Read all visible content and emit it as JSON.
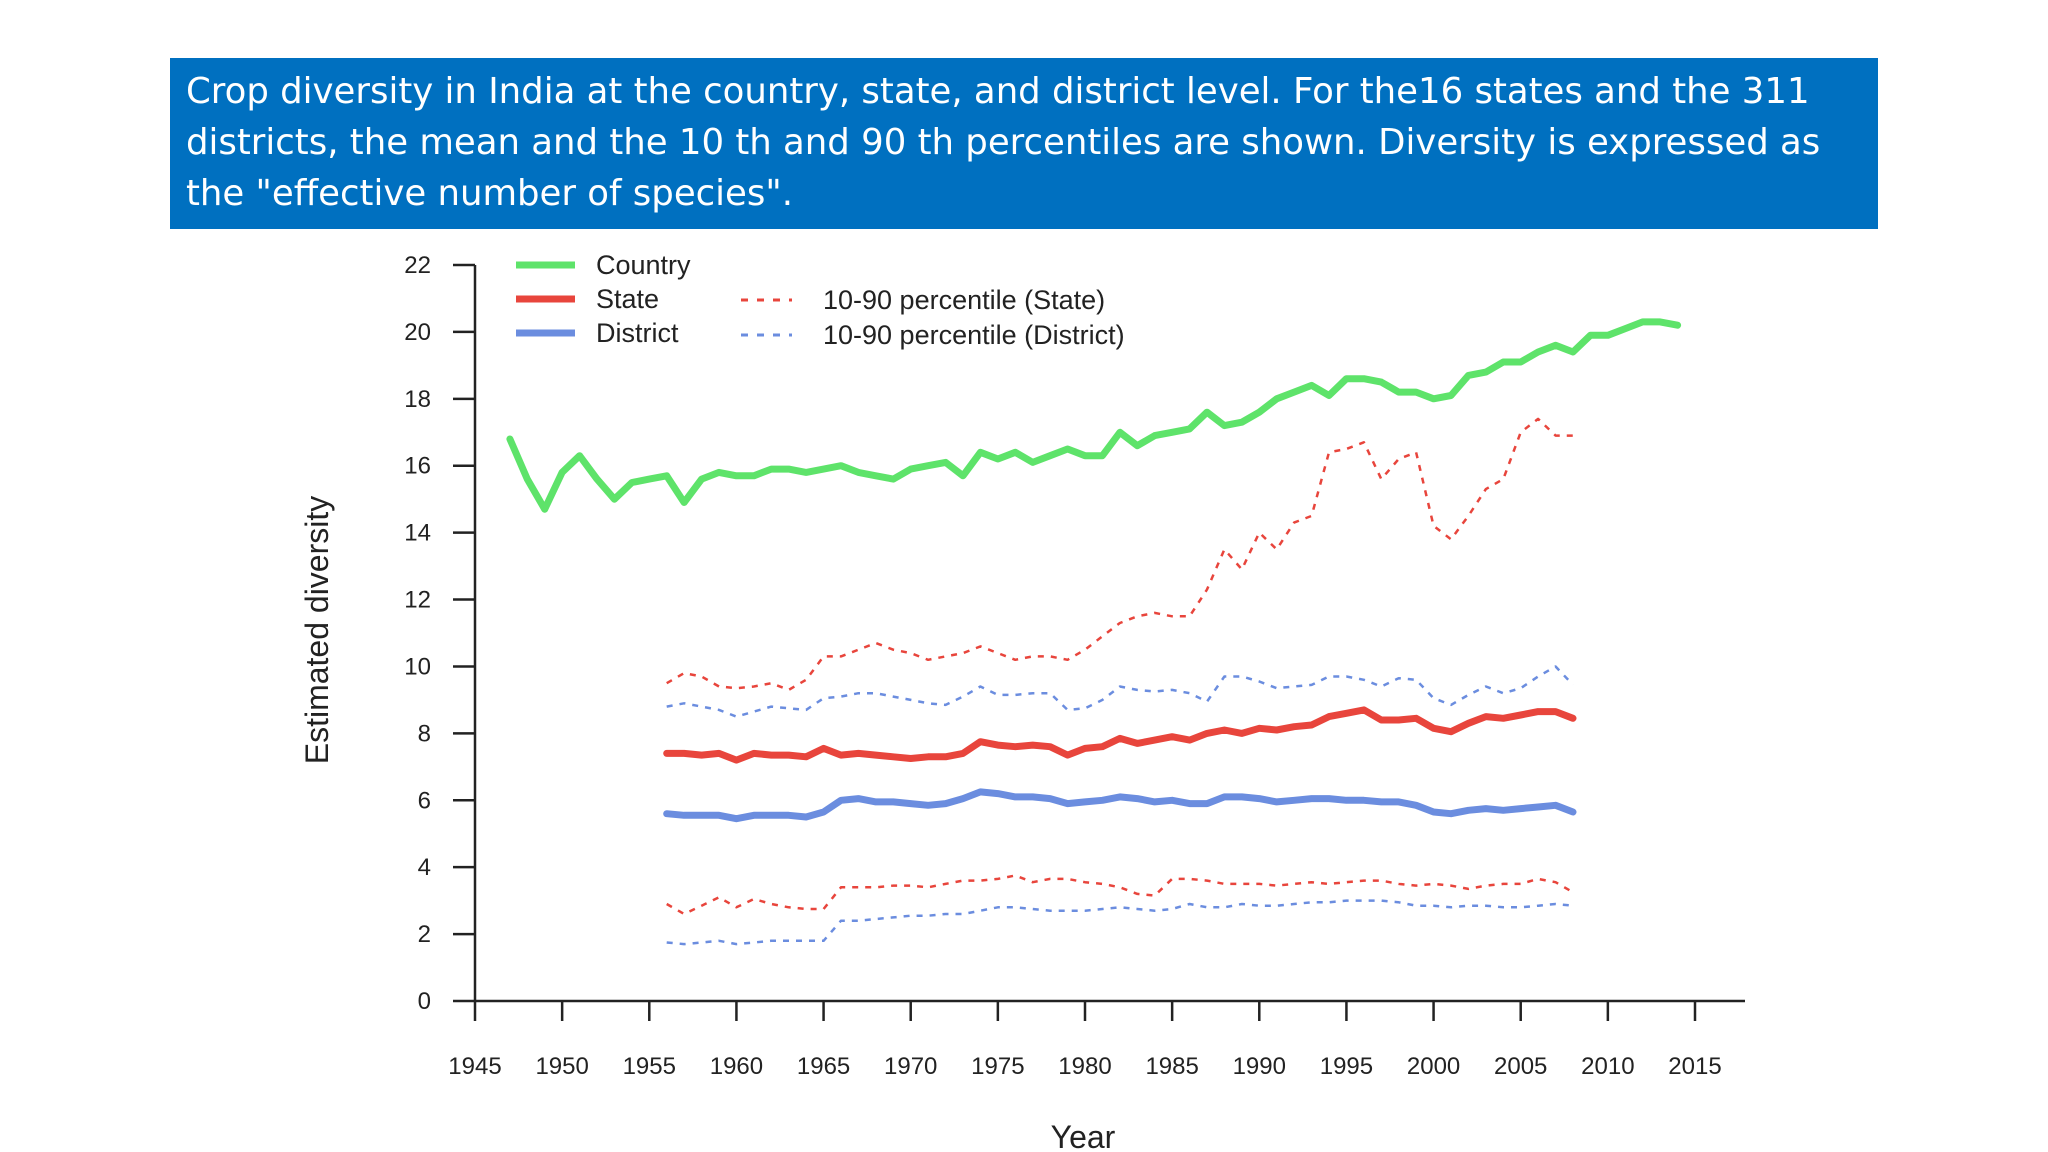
{
  "caption": {
    "text": "Crop diversity in India at the country, state, and district level. For the16 states and the 311 districts, the mean and the 10 th and 90 th percentiles are shown. Diversity is expressed as the \"effective number of species\"."
  },
  "chart_data": {
    "type": "line",
    "title": "",
    "xlabel": "Year",
    "ylabel": "Estimated diversity",
    "xlim": [
      1945,
      2015
    ],
    "ylim": [
      0,
      22
    ],
    "x_ticks": [
      1945,
      1950,
      1955,
      1960,
      1965,
      1970,
      1975,
      1980,
      1985,
      1990,
      1995,
      2000,
      2005,
      2010,
      2015
    ],
    "y_ticks": [
      0,
      2,
      4,
      6,
      8,
      10,
      12,
      14,
      16,
      18,
      20,
      22
    ],
    "grid": false,
    "legend": {
      "placement": "top-left",
      "entries": [
        {
          "label": "Country",
          "series": "country"
        },
        {
          "label": "State",
          "series": "state"
        },
        {
          "label": "District",
          "series": "district"
        },
        {
          "label": "10-90 percentile (State)",
          "series": "state_p"
        },
        {
          "label": "10-90 percentile (District)",
          "series": "district_p"
        }
      ]
    },
    "series": [
      {
        "id": "country",
        "name": "Country",
        "color": "#5ee36a",
        "style": "solid",
        "x": [
          1947,
          1948,
          1949,
          1950,
          1951,
          1952,
          1953,
          1954,
          1955,
          1956,
          1957,
          1958,
          1959,
          1960,
          1961,
          1962,
          1963,
          1964,
          1965,
          1966,
          1967,
          1968,
          1969,
          1970,
          1971,
          1972,
          1973,
          1974,
          1975,
          1976,
          1977,
          1978,
          1979,
          1980,
          1981,
          1982,
          1983,
          1984,
          1985,
          1986,
          1987,
          1988,
          1989,
          1990,
          1991,
          1992,
          1993,
          1994,
          1995,
          1996,
          1997,
          1998,
          1999,
          2000,
          2001,
          2002,
          2003,
          2004,
          2005,
          2006,
          2007,
          2008,
          2009,
          2010,
          2011,
          2012,
          2013,
          2014
        ],
        "y": [
          16.8,
          15.6,
          14.7,
          15.8,
          16.3,
          15.6,
          15.0,
          15.5,
          15.6,
          15.7,
          14.9,
          15.6,
          15.8,
          15.7,
          15.7,
          15.9,
          15.9,
          15.8,
          15.9,
          16.0,
          15.8,
          15.7,
          15.6,
          15.9,
          16.0,
          16.1,
          15.7,
          16.4,
          16.2,
          16.4,
          16.1,
          16.3,
          16.5,
          16.3,
          16.3,
          17.0,
          16.6,
          16.9,
          17.0,
          17.1,
          17.6,
          17.2,
          17.3,
          17.6,
          18.0,
          18.2,
          18.4,
          18.1,
          18.6,
          18.6,
          18.5,
          18.2,
          18.2,
          18.0,
          18.1,
          18.7,
          18.8,
          19.1,
          19.1,
          19.4,
          19.6,
          19.4,
          19.9,
          19.9,
          20.1,
          20.3,
          20.3,
          20.2
        ]
      },
      {
        "id": "state",
        "name": "State",
        "color": "#e8453c",
        "style": "solid",
        "x": [
          1956,
          1957,
          1958,
          1959,
          1960,
          1961,
          1962,
          1963,
          1964,
          1965,
          1966,
          1967,
          1968,
          1969,
          1970,
          1971,
          1972,
          1973,
          1974,
          1975,
          1976,
          1977,
          1978,
          1979,
          1980,
          1981,
          1982,
          1983,
          1984,
          1985,
          1986,
          1987,
          1988,
          1989,
          1990,
          1991,
          1992,
          1993,
          1994,
          1995,
          1996,
          1997,
          1998,
          1999,
          2000,
          2001,
          2002,
          2003,
          2004,
          2005,
          2006,
          2007,
          2008
        ],
        "y": [
          7.4,
          7.4,
          7.35,
          7.4,
          7.2,
          7.4,
          7.35,
          7.35,
          7.3,
          7.55,
          7.35,
          7.4,
          7.35,
          7.3,
          7.25,
          7.3,
          7.3,
          7.4,
          7.75,
          7.65,
          7.6,
          7.65,
          7.6,
          7.35,
          7.55,
          7.6,
          7.85,
          7.7,
          7.8,
          7.9,
          7.8,
          8.0,
          8.1,
          8.0,
          8.15,
          8.1,
          8.2,
          8.25,
          8.5,
          8.6,
          8.7,
          8.4,
          8.4,
          8.45,
          8.15,
          8.05,
          8.3,
          8.5,
          8.45,
          8.55,
          8.65,
          8.65,
          8.45
        ]
      },
      {
        "id": "district",
        "name": "District",
        "color": "#6b8ddf",
        "style": "solid",
        "x": [
          1956,
          1957,
          1958,
          1959,
          1960,
          1961,
          1962,
          1963,
          1964,
          1965,
          1966,
          1967,
          1968,
          1969,
          1970,
          1971,
          1972,
          1973,
          1974,
          1975,
          1976,
          1977,
          1978,
          1979,
          1980,
          1981,
          1982,
          1983,
          1984,
          1985,
          1986,
          1987,
          1988,
          1989,
          1990,
          1991,
          1992,
          1993,
          1994,
          1995,
          1996,
          1997,
          1998,
          1999,
          2000,
          2001,
          2002,
          2003,
          2004,
          2005,
          2006,
          2007,
          2008
        ],
        "y": [
          5.6,
          5.55,
          5.55,
          5.55,
          5.45,
          5.55,
          5.55,
          5.55,
          5.5,
          5.65,
          6.0,
          6.05,
          5.95,
          5.95,
          5.9,
          5.85,
          5.9,
          6.05,
          6.25,
          6.2,
          6.1,
          6.1,
          6.05,
          5.9,
          5.95,
          6.0,
          6.1,
          6.05,
          5.95,
          6.0,
          5.9,
          5.9,
          6.1,
          6.1,
          6.05,
          5.95,
          6.0,
          6.05,
          6.05,
          6.0,
          6.0,
          5.95,
          5.95,
          5.85,
          5.65,
          5.6,
          5.7,
          5.75,
          5.7,
          5.75,
          5.8,
          5.85,
          5.65
        ]
      },
      {
        "id": "state_p90",
        "name": "10-90 percentile (State)",
        "color": "#e8453c",
        "style": "dashed",
        "x": [
          1956,
          1957,
          1958,
          1959,
          1960,
          1961,
          1962,
          1963,
          1964,
          1965,
          1966,
          1967,
          1968,
          1969,
          1970,
          1971,
          1972,
          1973,
          1974,
          1975,
          1976,
          1977,
          1978,
          1979,
          1980,
          1981,
          1982,
          1983,
          1984,
          1985,
          1986,
          1987,
          1988,
          1989,
          1990,
          1991,
          1992,
          1993,
          1994,
          1995,
          1996,
          1997,
          1998,
          1999,
          2000,
          2001,
          2002,
          2003,
          2004,
          2005,
          2006,
          2007,
          2008
        ],
        "y": [
          9.5,
          9.8,
          9.7,
          9.4,
          9.35,
          9.4,
          9.5,
          9.3,
          9.6,
          10.3,
          10.3,
          10.5,
          10.7,
          10.5,
          10.4,
          10.2,
          10.3,
          10.4,
          10.6,
          10.4,
          10.2,
          10.3,
          10.3,
          10.2,
          10.5,
          10.9,
          11.3,
          11.5,
          11.6,
          11.5,
          11.5,
          12.3,
          13.5,
          12.9,
          14.0,
          13.5,
          14.3,
          14.5,
          16.4,
          16.5,
          16.7,
          15.6,
          16.2,
          16.4,
          14.2,
          13.8,
          14.5,
          15.3,
          15.6,
          17.0,
          17.4,
          16.9,
          16.9
        ]
      },
      {
        "id": "state_p10",
        "name": "10-90 percentile (State)",
        "color": "#e8453c",
        "style": "dashed",
        "x": [
          1956,
          1957,
          1958,
          1959,
          1960,
          1961,
          1962,
          1963,
          1964,
          1965,
          1966,
          1967,
          1968,
          1969,
          1970,
          1971,
          1972,
          1973,
          1974,
          1975,
          1976,
          1977,
          1978,
          1979,
          1980,
          1981,
          1982,
          1983,
          1984,
          1985,
          1986,
          1987,
          1988,
          1989,
          1990,
          1991,
          1992,
          1993,
          1994,
          1995,
          1996,
          1997,
          1998,
          1999,
          2000,
          2001,
          2002,
          2003,
          2004,
          2005,
          2006,
          2007,
          2008
        ],
        "y": [
          2.9,
          2.6,
          2.85,
          3.1,
          2.8,
          3.05,
          2.9,
          2.8,
          2.75,
          2.75,
          3.4,
          3.4,
          3.4,
          3.45,
          3.45,
          3.4,
          3.5,
          3.6,
          3.6,
          3.65,
          3.75,
          3.55,
          3.65,
          3.65,
          3.55,
          3.5,
          3.4,
          3.2,
          3.15,
          3.65,
          3.65,
          3.6,
          3.5,
          3.5,
          3.5,
          3.45,
          3.5,
          3.55,
          3.5,
          3.55,
          3.6,
          3.6,
          3.5,
          3.45,
          3.5,
          3.45,
          3.35,
          3.45,
          3.5,
          3.5,
          3.65,
          3.55,
          3.25
        ]
      },
      {
        "id": "district_p90",
        "name": "10-90 percentile (District)",
        "color": "#6b8ddf",
        "style": "dashed",
        "x": [
          1956,
          1957,
          1958,
          1959,
          1960,
          1961,
          1962,
          1963,
          1964,
          1965,
          1966,
          1967,
          1968,
          1969,
          1970,
          1971,
          1972,
          1973,
          1974,
          1975,
          1976,
          1977,
          1978,
          1979,
          1980,
          1981,
          1982,
          1983,
          1984,
          1985,
          1986,
          1987,
          1988,
          1989,
          1990,
          1991,
          1992,
          1993,
          1994,
          1995,
          1996,
          1997,
          1998,
          1999,
          2000,
          2001,
          2002,
          2003,
          2004,
          2005,
          2006,
          2007,
          2008
        ],
        "y": [
          8.8,
          8.9,
          8.8,
          8.7,
          8.5,
          8.65,
          8.8,
          8.75,
          8.7,
          9.05,
          9.1,
          9.2,
          9.2,
          9.1,
          9.0,
          8.9,
          8.85,
          9.1,
          9.4,
          9.15,
          9.15,
          9.2,
          9.2,
          8.7,
          8.75,
          9.0,
          9.4,
          9.3,
          9.25,
          9.3,
          9.2,
          8.95,
          9.7,
          9.7,
          9.55,
          9.35,
          9.4,
          9.45,
          9.7,
          9.7,
          9.6,
          9.4,
          9.65,
          9.6,
          9.05,
          8.85,
          9.15,
          9.4,
          9.2,
          9.35,
          9.7,
          10.0,
          9.45
        ]
      },
      {
        "id": "district_p10",
        "name": "10-90 percentile (District)",
        "color": "#6b8ddf",
        "style": "dashed",
        "x": [
          1956,
          1957,
          1958,
          1959,
          1960,
          1961,
          1962,
          1963,
          1964,
          1965,
          1966,
          1967,
          1968,
          1969,
          1970,
          1971,
          1972,
          1973,
          1974,
          1975,
          1976,
          1977,
          1978,
          1979,
          1980,
          1981,
          1982,
          1983,
          1984,
          1985,
          1986,
          1987,
          1988,
          1989,
          1990,
          1991,
          1992,
          1993,
          1994,
          1995,
          1996,
          1997,
          1998,
          1999,
          2000,
          2001,
          2002,
          2003,
          2004,
          2005,
          2006,
          2007,
          2008
        ],
        "y": [
          1.75,
          1.7,
          1.75,
          1.8,
          1.7,
          1.75,
          1.8,
          1.8,
          1.8,
          1.8,
          2.4,
          2.4,
          2.45,
          2.5,
          2.55,
          2.55,
          2.6,
          2.6,
          2.7,
          2.8,
          2.8,
          2.75,
          2.7,
          2.7,
          2.7,
          2.75,
          2.8,
          2.75,
          2.7,
          2.75,
          2.9,
          2.8,
          2.8,
          2.9,
          2.85,
          2.85,
          2.9,
          2.95,
          2.95,
          3.0,
          3.0,
          3.0,
          2.95,
          2.85,
          2.85,
          2.8,
          2.85,
          2.85,
          2.8,
          2.8,
          2.85,
          2.9,
          2.85
        ]
      }
    ]
  }
}
